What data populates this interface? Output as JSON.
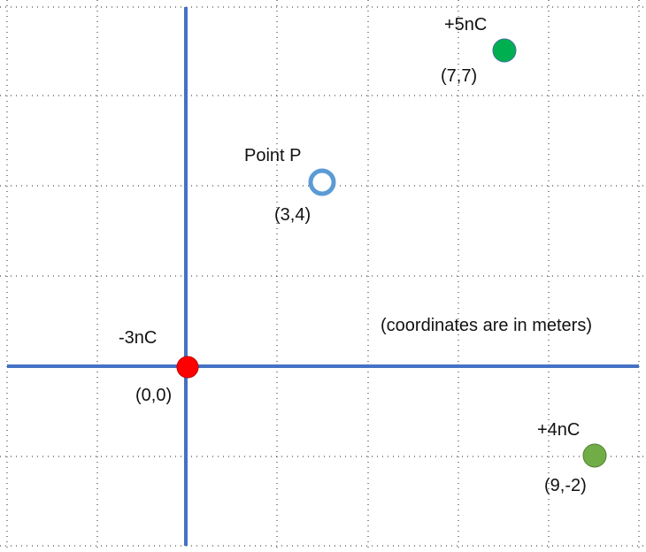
{
  "note": "(coordinates are in meters)",
  "charges": [
    {
      "id": "origin",
      "label": "-3nC",
      "coords": "(0,0)",
      "color": "#ff0000",
      "hollow": false
    },
    {
      "id": "p5",
      "label": "+5nC",
      "coords": "(7,7)",
      "color": "#00b050",
      "hollow": false
    },
    {
      "id": "p4",
      "label": "+4nC",
      "coords": "(9,-2)",
      "color": "#70ad47",
      "hollow": false
    }
  ],
  "point_p": {
    "label": "Point P",
    "coords": "(3,4)",
    "color": "#5b9bd5"
  },
  "colors": {
    "axis": "#4472c4",
    "grid": "#222222"
  }
}
